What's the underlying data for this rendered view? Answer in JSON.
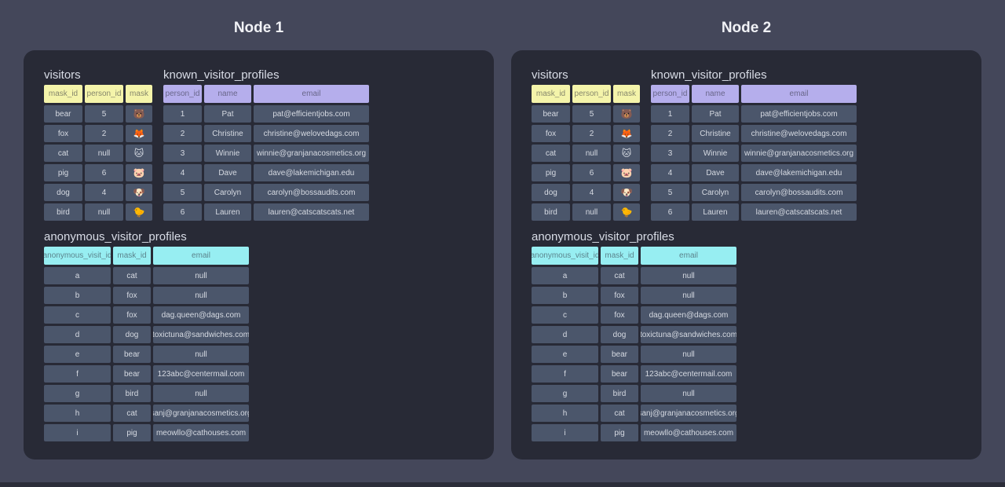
{
  "colors": {
    "page_background": "#44475a",
    "panel_background": "#282a36",
    "cell_background": "#4b566b",
    "cell_text": "#d6dae2",
    "visitors_header": "#f4f4aa",
    "known_header": "#b5aeec",
    "anonymous_header": "#97eef2"
  },
  "nodes": [
    {
      "title": "Node 1",
      "tables": {
        "visitors": {
          "title": "visitors",
          "header_color": "#f4f4aa",
          "columns": [
            "mask_id",
            "person_id",
            "mask"
          ],
          "mask_icons": [
            "bear-face",
            "fox-face",
            "cat-face",
            "pig-face",
            "dog-face",
            "baby-chick"
          ],
          "rows": [
            [
              "bear",
              "5",
              "🐻"
            ],
            [
              "fox",
              "2",
              "🦊"
            ],
            [
              "cat",
              "null",
              "🐱"
            ],
            [
              "pig",
              "6",
              "🐷"
            ],
            [
              "dog",
              "4",
              "🐶"
            ],
            [
              "bird",
              "null",
              "🐤"
            ]
          ]
        },
        "known": {
          "title": "known_visitor_profiles",
          "header_color": "#b5aeec",
          "columns": [
            "person_id",
            "name",
            "email"
          ],
          "rows": [
            [
              "1",
              "Pat",
              "pat@efficientjobs.com"
            ],
            [
              "2",
              "Christine",
              "christine@welovedags.com"
            ],
            [
              "3",
              "Winnie",
              "winnie@granjanacosmetics.org"
            ],
            [
              "4",
              "Dave",
              "dave@lakemichigan.edu"
            ],
            [
              "5",
              "Carolyn",
              "carolyn@bossaudits.com"
            ],
            [
              "6",
              "Lauren",
              "lauren@catscatscats.net"
            ]
          ]
        },
        "anonymous": {
          "title": "anonymous_visitor_profiles",
          "header_color": "#97eef2",
          "columns": [
            "anonymous_visit_id",
            "mask_id",
            "email"
          ],
          "rows": [
            [
              "a",
              "cat",
              "null"
            ],
            [
              "b",
              "fox",
              "null"
            ],
            [
              "c",
              "fox",
              "dag.queen@dags.com"
            ],
            [
              "d",
              "dog",
              "toxictuna@sandwiches.com"
            ],
            [
              "e",
              "bear",
              "null"
            ],
            [
              "f",
              "bear",
              "123abc@centermail.com"
            ],
            [
              "g",
              "bird",
              "null"
            ],
            [
              "h",
              "cat",
              "sanj@granjanacosmetics.org"
            ],
            [
              "i",
              "pig",
              "meowllo@cathouses.com"
            ]
          ]
        }
      }
    },
    {
      "title": "Node 2",
      "tables": {
        "visitors": {
          "title": "visitors",
          "header_color": "#f4f4aa",
          "columns": [
            "mask_id",
            "person_id",
            "mask"
          ],
          "mask_icons": [
            "bear-face",
            "fox-face",
            "cat-face",
            "pig-face",
            "dog-face",
            "baby-chick"
          ],
          "rows": [
            [
              "bear",
              "5",
              "🐻"
            ],
            [
              "fox",
              "2",
              "🦊"
            ],
            [
              "cat",
              "null",
              "🐱"
            ],
            [
              "pig",
              "6",
              "🐷"
            ],
            [
              "dog",
              "4",
              "🐶"
            ],
            [
              "bird",
              "null",
              "🐤"
            ]
          ]
        },
        "known": {
          "title": "known_visitor_profiles",
          "header_color": "#b5aeec",
          "columns": [
            "person_id",
            "name",
            "email"
          ],
          "rows": [
            [
              "1",
              "Pat",
              "pat@efficientjobs.com"
            ],
            [
              "2",
              "Christine",
              "christine@welovedags.com"
            ],
            [
              "3",
              "Winnie",
              "winnie@granjanacosmetics.org"
            ],
            [
              "4",
              "Dave",
              "dave@lakemichigan.edu"
            ],
            [
              "5",
              "Carolyn",
              "carolyn@bossaudits.com"
            ],
            [
              "6",
              "Lauren",
              "lauren@catscatscats.net"
            ]
          ]
        },
        "anonymous": {
          "title": "anonymous_visitor_profiles",
          "header_color": "#97eef2",
          "columns": [
            "anonymous_visit_id",
            "mask_id",
            "email"
          ],
          "rows": [
            [
              "a",
              "cat",
              "null"
            ],
            [
              "b",
              "fox",
              "null"
            ],
            [
              "c",
              "fox",
              "dag.queen@dags.com"
            ],
            [
              "d",
              "dog",
              "toxictuna@sandwiches.com"
            ],
            [
              "e",
              "bear",
              "null"
            ],
            [
              "f",
              "bear",
              "123abc@centermail.com"
            ],
            [
              "g",
              "bird",
              "null"
            ],
            [
              "h",
              "cat",
              "sanj@granjanacosmetics.org"
            ],
            [
              "i",
              "pig",
              "meowllo@cathouses.com"
            ]
          ]
        }
      }
    }
  ]
}
